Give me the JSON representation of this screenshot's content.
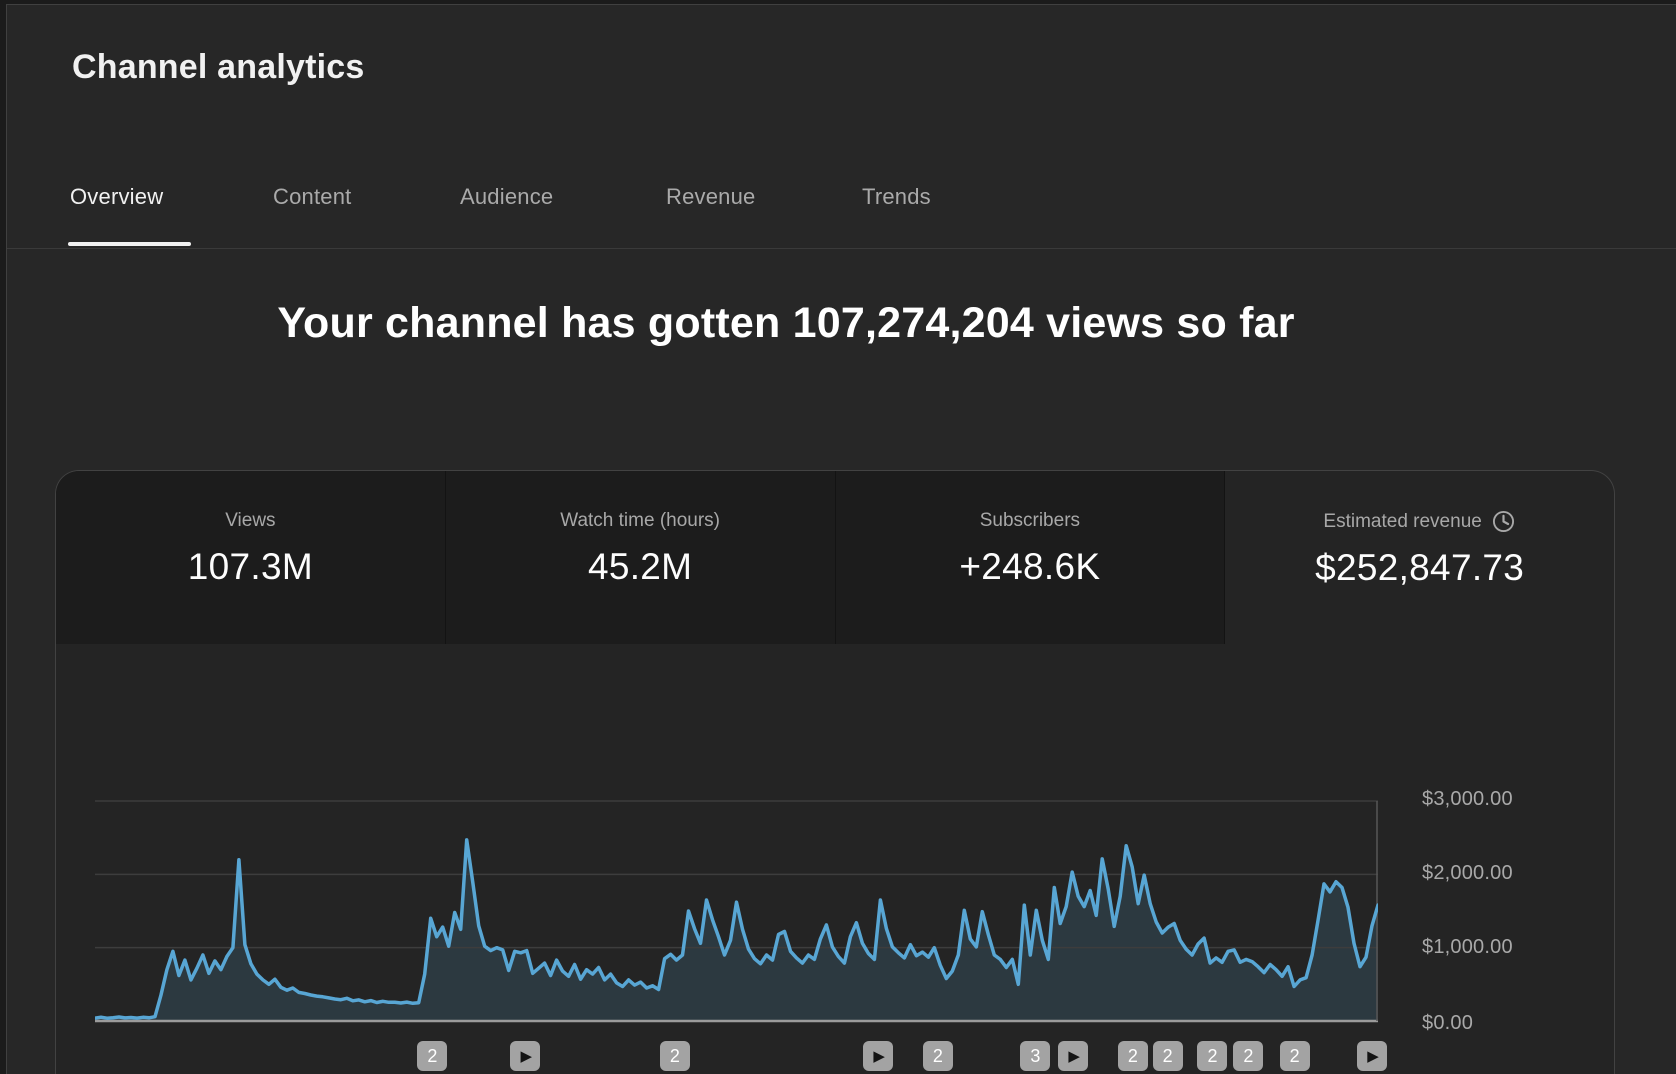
{
  "header": {
    "title": "Channel analytics"
  },
  "tabs": [
    {
      "label": "Overview",
      "active": true
    },
    {
      "label": "Content",
      "active": false
    },
    {
      "label": "Audience",
      "active": false
    },
    {
      "label": "Revenue",
      "active": false
    },
    {
      "label": "Trends",
      "active": false
    }
  ],
  "headline": "Your channel has gotten 107,274,204 views so far",
  "stats": [
    {
      "label": "Views",
      "value": "107.3M",
      "selected": false
    },
    {
      "label": "Watch time (hours)",
      "value": "45.2M",
      "selected": false
    },
    {
      "label": "Subscribers",
      "value": "+248.6K",
      "selected": false
    },
    {
      "label": "Estimated revenue",
      "value": "$252,847.73",
      "selected": true,
      "icon": "clock-icon"
    }
  ],
  "chart_data": {
    "type": "area",
    "title": "",
    "xlabel": "",
    "ylabel": "",
    "unit": "USD per day",
    "ylim": [
      0,
      3000
    ],
    "grid": "horizontal",
    "legend": "none",
    "y_ticks": [
      {
        "label": "$3,000.00",
        "value": 3000
      },
      {
        "label": "$2,000.00",
        "value": 2000
      },
      {
        "label": "$1,000.00",
        "value": 1000
      },
      {
        "label": "$0.00",
        "value": 0
      }
    ],
    "values": [
      40,
      52,
      38,
      45,
      55,
      42,
      48,
      40,
      50,
      44,
      58,
      350,
      700,
      950,
      620,
      830,
      560,
      720,
      900,
      650,
      820,
      700,
      880,
      1000,
      2200,
      1040,
      780,
      640,
      560,
      500,
      570,
      460,
      420,
      450,
      390,
      375,
      355,
      340,
      330,
      315,
      300,
      290,
      310,
      275,
      288,
      262,
      278,
      252,
      268,
      255,
      255,
      245,
      258,
      242,
      250,
      640,
      1400,
      1150,
      1280,
      1020,
      1480,
      1250,
      2470,
      1900,
      1300,
      1020,
      960,
      1000,
      970,
      690,
      950,
      930,
      960,
      650,
      720,
      790,
      620,
      830,
      680,
      610,
      770,
      570,
      700,
      640,
      730,
      560,
      640,
      520,
      470,
      560,
      490,
      530,
      450,
      480,
      430,
      850,
      910,
      830,
      900,
      1500,
      1260,
      1060,
      1650,
      1380,
      1150,
      900,
      1100,
      1620,
      1250,
      980,
      850,
      780,
      900,
      830,
      1180,
      1220,
      950,
      860,
      790,
      900,
      840,
      1120,
      1310,
      1010,
      880,
      790,
      1150,
      1340,
      1060,
      920,
      840,
      1650,
      1260,
      1010,
      930,
      860,
      1040,
      890,
      940,
      870,
      1000,
      760,
      580,
      680,
      900,
      1510,
      1120,
      1010,
      1490,
      1180,
      900,
      840,
      730,
      840,
      500,
      1580,
      900,
      1510,
      1100,
      840,
      1820,
      1330,
      1560,
      2030,
      1700,
      1560,
      1780,
      1440,
      2210,
      1800,
      1290,
      1700,
      2390,
      2100,
      1600,
      1990,
      1600,
      1350,
      1200,
      1280,
      1330,
      1100,
      980,
      900,
      1050,
      1130,
      790,
      860,
      800,
      950,
      970,
      800,
      840,
      810,
      740,
      660,
      770,
      700,
      610,
      740,
      470,
      560,
      590,
      900,
      1370,
      1870,
      1760,
      1900,
      1820,
      1550,
      1060,
      740,
      870,
      1300,
      1580
    ],
    "markers": [
      {
        "pos": 0.263,
        "kind": "count",
        "label": "2"
      },
      {
        "pos": 0.335,
        "kind": "play",
        "label": ""
      },
      {
        "pos": 0.452,
        "kind": "count",
        "label": "2"
      },
      {
        "pos": 0.61,
        "kind": "play",
        "label": ""
      },
      {
        "pos": 0.657,
        "kind": "count",
        "label": "2"
      },
      {
        "pos": 0.733,
        "kind": "count",
        "label": "3"
      },
      {
        "pos": 0.762,
        "kind": "play",
        "label": ""
      },
      {
        "pos": 0.809,
        "kind": "count",
        "label": "2"
      },
      {
        "pos": 0.836,
        "kind": "count",
        "label": "2"
      },
      {
        "pos": 0.871,
        "kind": "count",
        "label": "2"
      },
      {
        "pos": 0.899,
        "kind": "count",
        "label": "2"
      },
      {
        "pos": 0.935,
        "kind": "count",
        "label": "2"
      },
      {
        "pos": 0.995,
        "kind": "play",
        "label": ""
      }
    ]
  },
  "colors": {
    "accent_line": "#58a6d4",
    "area_fill": "rgba(88,166,212,0.16)",
    "gridline": "#3d3d3d",
    "baseline": "#9b9b9b",
    "plot_border": "#565656",
    "badge_bg": "#a3a3a3",
    "tab_active": "#f1f1f1",
    "text_secondary": "#aaaaaa"
  }
}
